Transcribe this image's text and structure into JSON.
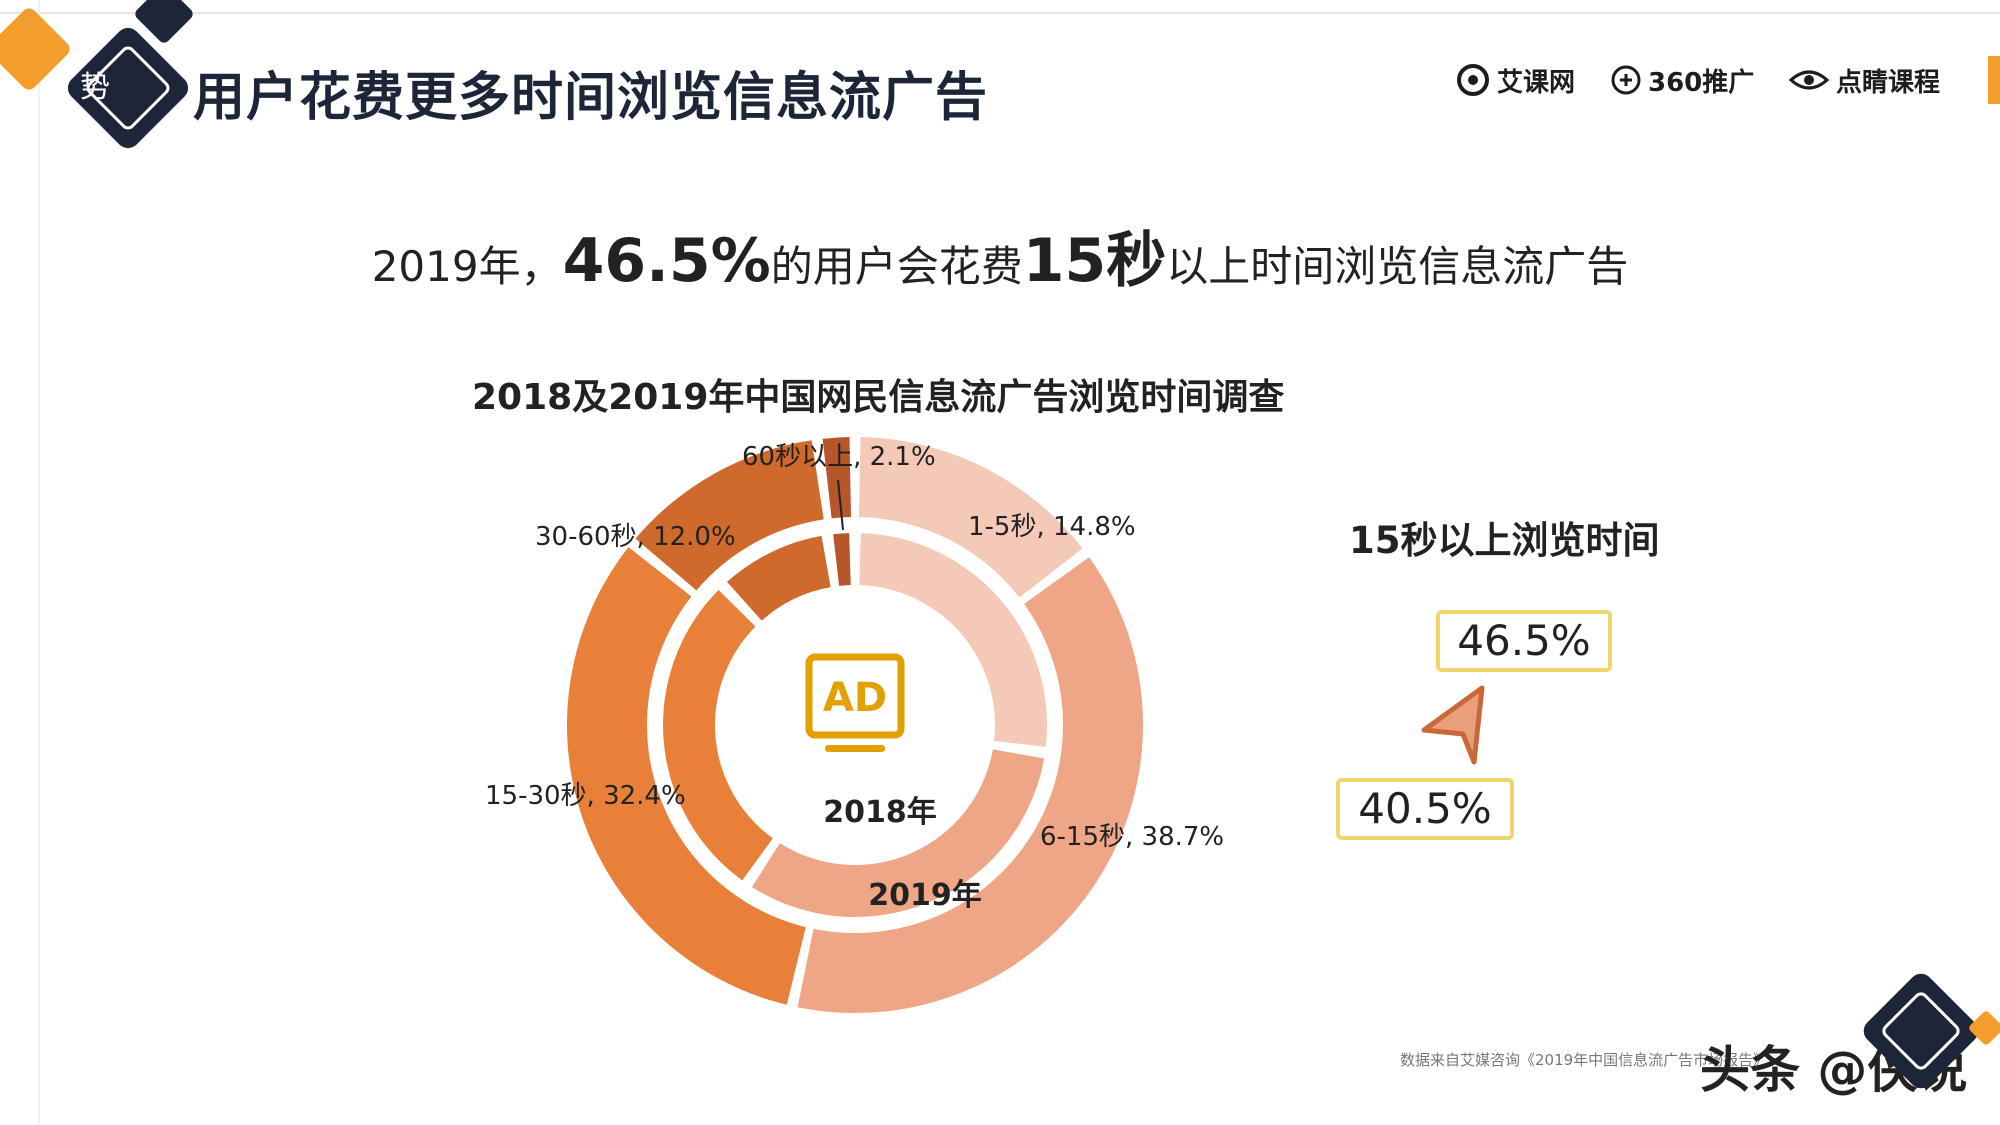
{
  "header": {
    "side_tag": "势",
    "title": "用户花费更多时间浏览信息流广告"
  },
  "logos": [
    {
      "name": "艾课网",
      "icon": "swirl-logo-icon"
    },
    {
      "name": "360推广",
      "icon": "plus-circle-logo-icon"
    },
    {
      "name": "点睛课程",
      "icon": "eye-logo-icon"
    }
  ],
  "headline": {
    "part1": "2019年，",
    "pct": "46.5%",
    "part2": "的用户会花费",
    "secs": "15秒",
    "part3": "以上时间浏览信息流广告"
  },
  "chart_data": {
    "type": "pie",
    "title": "2018及2019年中国网民信息流广告浏览时间调查",
    "categories": [
      "1-5秒",
      "6-15秒",
      "15-30秒",
      "30-60秒",
      "60秒以上"
    ],
    "series": [
      {
        "name": "2018年",
        "values": [
          27.3,
          32.2,
          28.4,
          9.8,
          2.3
        ]
      },
      {
        "name": "2019年",
        "values": [
          14.8,
          38.7,
          32.4,
          12.0,
          2.1
        ]
      }
    ],
    "labels_2019": [
      "1-5秒, 14.8%",
      "6-15秒, 38.7%",
      "15-30秒, 32.4%",
      "30-60秒, 12.0%",
      "60秒以上, 2.1%"
    ],
    "colors": [
      "#f5c9b7",
      "#eea686",
      "#e8803a",
      "#d0692c",
      "#b6562a"
    ],
    "center_icon": "ad-monitor-icon",
    "center_text": "AD",
    "ring_labels": {
      "inner": "2018年",
      "outer": "2019年"
    }
  },
  "side_panel": {
    "title": "15秒以上浏览时间",
    "value_2019": "46.5%",
    "value_2018": "40.5%",
    "arrow_color": "#d97f52"
  },
  "footer": {
    "source": "数据来自艾媒咨询《2019年中国信息流广告市场报告》",
    "watermark": "头条 @侠说"
  },
  "colors": {
    "dark": "#1d2638",
    "accent": "#f29d2c",
    "box_border": "#f1d46b"
  }
}
